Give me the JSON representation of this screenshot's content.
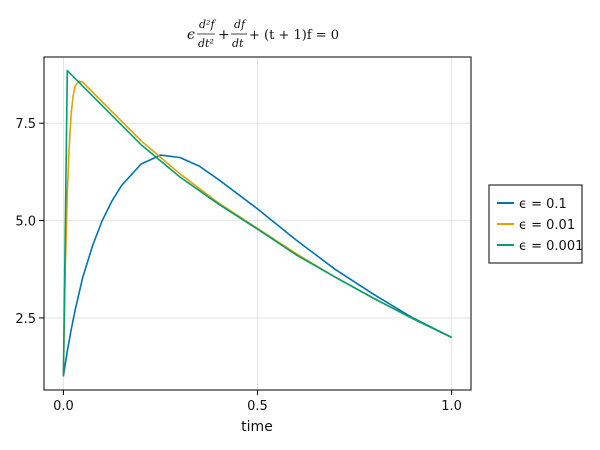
{
  "chart_data": {
    "type": "line",
    "title_parts": {
      "eps": "ϵ",
      "frac1_num": "d²f",
      "frac1_den": "dt²",
      "plus1": "+",
      "frac2_num": "df",
      "frac2_den": "dt",
      "rest": "+ (t + 1)f = 0"
    },
    "xlabel": "time",
    "ylabel": "",
    "xlim": [
      -0.05,
      1.05
    ],
    "ylim": [
      0.65,
      9.2
    ],
    "xticks": [
      0.0,
      0.5,
      1.0
    ],
    "xtick_labels": [
      "0.0",
      "0.5",
      "1.0"
    ],
    "yticks": [
      2.5,
      5.0,
      7.5
    ],
    "ytick_labels": [
      "2.5",
      "5.0",
      "7.5"
    ],
    "grid": true,
    "legend_placement": "right",
    "series": [
      {
        "name": "ϵ = 0.1",
        "color": "#0072b2",
        "x": [
          0,
          0.01,
          0.02,
          0.03,
          0.05,
          0.075,
          0.1,
          0.125,
          0.15,
          0.2,
          0.25,
          0.3,
          0.35,
          0.4,
          0.5,
          0.6,
          0.7,
          0.8,
          0.9,
          1.0
        ],
        "y": [
          1.0,
          1.65,
          2.2,
          2.7,
          3.55,
          4.35,
          5.0,
          5.5,
          5.9,
          6.45,
          6.68,
          6.62,
          6.4,
          6.05,
          5.3,
          4.5,
          3.75,
          3.1,
          2.5,
          2.0
        ]
      },
      {
        "name": "ϵ = 0.01",
        "color": "#e69f00",
        "x": [
          0,
          0.005,
          0.01,
          0.015,
          0.02,
          0.025,
          0.03,
          0.04,
          0.05,
          0.075,
          0.1,
          0.15,
          0.2,
          0.3,
          0.4,
          0.5,
          0.6,
          0.7,
          0.8,
          0.9,
          1.0
        ],
        "y": [
          1.0,
          3.8,
          5.7,
          6.9,
          7.75,
          8.2,
          8.45,
          8.58,
          8.55,
          8.3,
          8.05,
          7.55,
          7.05,
          6.2,
          5.45,
          4.8,
          4.15,
          3.55,
          3.0,
          2.48,
          2.0
        ]
      },
      {
        "name": "ϵ = 0.001",
        "color": "#009e73",
        "x": [
          0,
          0.01,
          0.05,
          0.1,
          0.15,
          0.2,
          0.3,
          0.4,
          0.5,
          0.6,
          0.7,
          0.8,
          0.9,
          1.0
        ],
        "y": [
          1.0,
          8.85,
          8.45,
          7.95,
          7.45,
          6.95,
          6.12,
          5.42,
          4.78,
          4.12,
          3.55,
          3.0,
          2.48,
          2.0
        ]
      }
    ]
  }
}
